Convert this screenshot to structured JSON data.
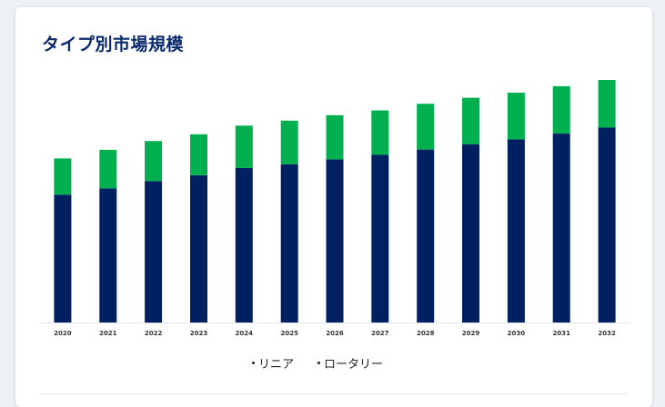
{
  "title": "タイプ別市場規模",
  "chart_data": {
    "type": "bar",
    "stacked": true,
    "categories": [
      "2020",
      "2021",
      "2022",
      "2023",
      "2024",
      "2025",
      "2026",
      "2027",
      "2028",
      "2029",
      "2030",
      "2031",
      "2032"
    ],
    "series": [
      {
        "name": "リニア",
        "color": "#00205f",
        "values": [
          40.2,
          42.2,
          44.5,
          46.3,
          48.6,
          49.8,
          51.3,
          52.7,
          54.4,
          56.1,
          57.6,
          59.4,
          61.3
        ]
      },
      {
        "name": "ロータリー",
        "color": "#00b050",
        "values": [
          11.4,
          12.1,
          12.6,
          12.9,
          13.3,
          13.7,
          13.9,
          14.0,
          14.4,
          14.6,
          14.7,
          14.9,
          15.0
        ]
      }
    ],
    "ylim": [
      0,
      80
    ],
    "grid": false,
    "legend_position": "bottom"
  }
}
